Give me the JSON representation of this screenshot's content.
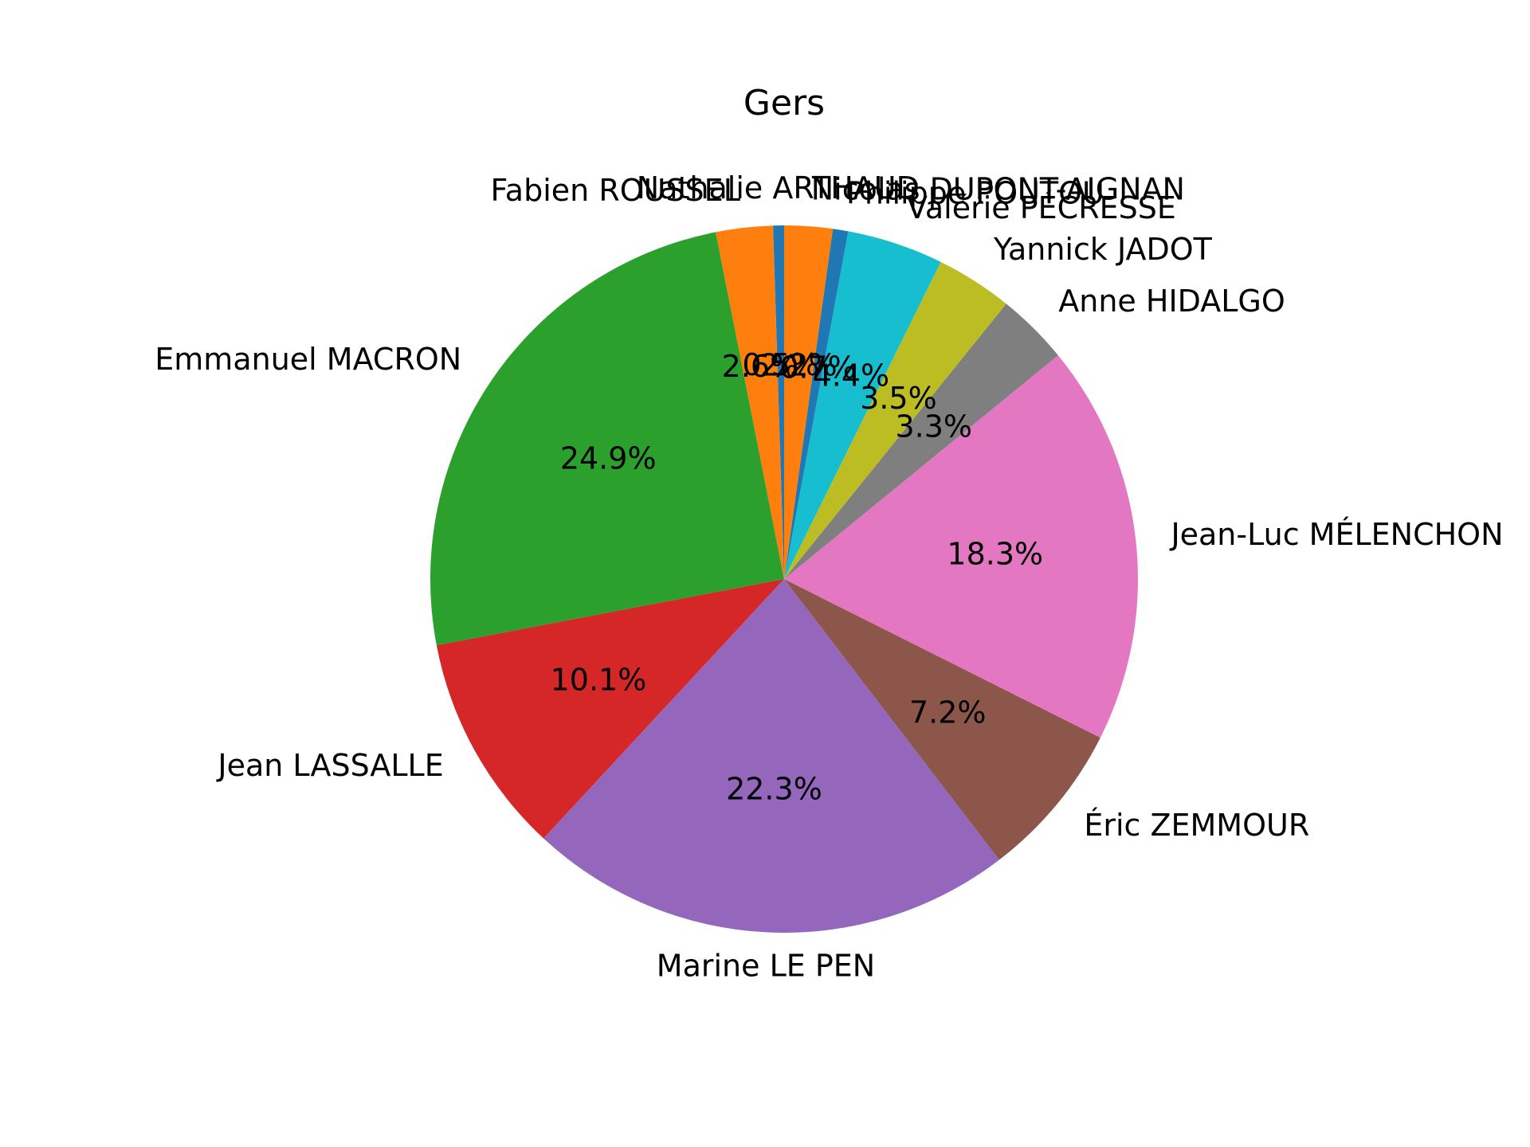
{
  "chart_data": {
    "type": "pie",
    "title": "Gers",
    "start_angle_deg": 90,
    "direction": "counterclockwise",
    "slices": [
      {
        "label": "Nathalie ARTHAUD",
        "value": 0.5,
        "pct": "0.5%",
        "color": "#1f77b4"
      },
      {
        "label": "Fabien ROUSSEL",
        "value": 2.6,
        "pct": "2.6%",
        "color": "#ff7f0e"
      },
      {
        "label": "Emmanuel MACRON",
        "value": 24.9,
        "pct": "24.9%",
        "color": "#2ca02c"
      },
      {
        "label": "Jean LASSALLE",
        "value": 10.1,
        "pct": "10.1%",
        "color": "#d62728"
      },
      {
        "label": "Marine LE PEN",
        "value": 22.3,
        "pct": "22.3%",
        "color": "#9467bd"
      },
      {
        "label": "Éric ZEMMOUR",
        "value": 7.2,
        "pct": "7.2%",
        "color": "#8c564b"
      },
      {
        "label": "Jean-Luc MÉLENCHON",
        "value": 18.3,
        "pct": "18.3%",
        "color": "#e377c2"
      },
      {
        "label": "Anne HIDALGO",
        "value": 3.3,
        "pct": "3.3%",
        "color": "#7f7f7f"
      },
      {
        "label": "Yannick JADOT",
        "value": 3.5,
        "pct": "3.5%",
        "color": "#bcbd22"
      },
      {
        "label": "Valérie PÉCRESSE",
        "value": 4.4,
        "pct": "4.4%",
        "color": "#17becf"
      },
      {
        "label": "Philippe POUTOU",
        "value": 0.7,
        "pct": "0.7%",
        "color": "#1f77b4"
      },
      {
        "label": "Nicolas DUPONT-AIGNAN",
        "value": 2.2,
        "pct": "2.2%",
        "color": "#ff7f0e"
      }
    ]
  }
}
